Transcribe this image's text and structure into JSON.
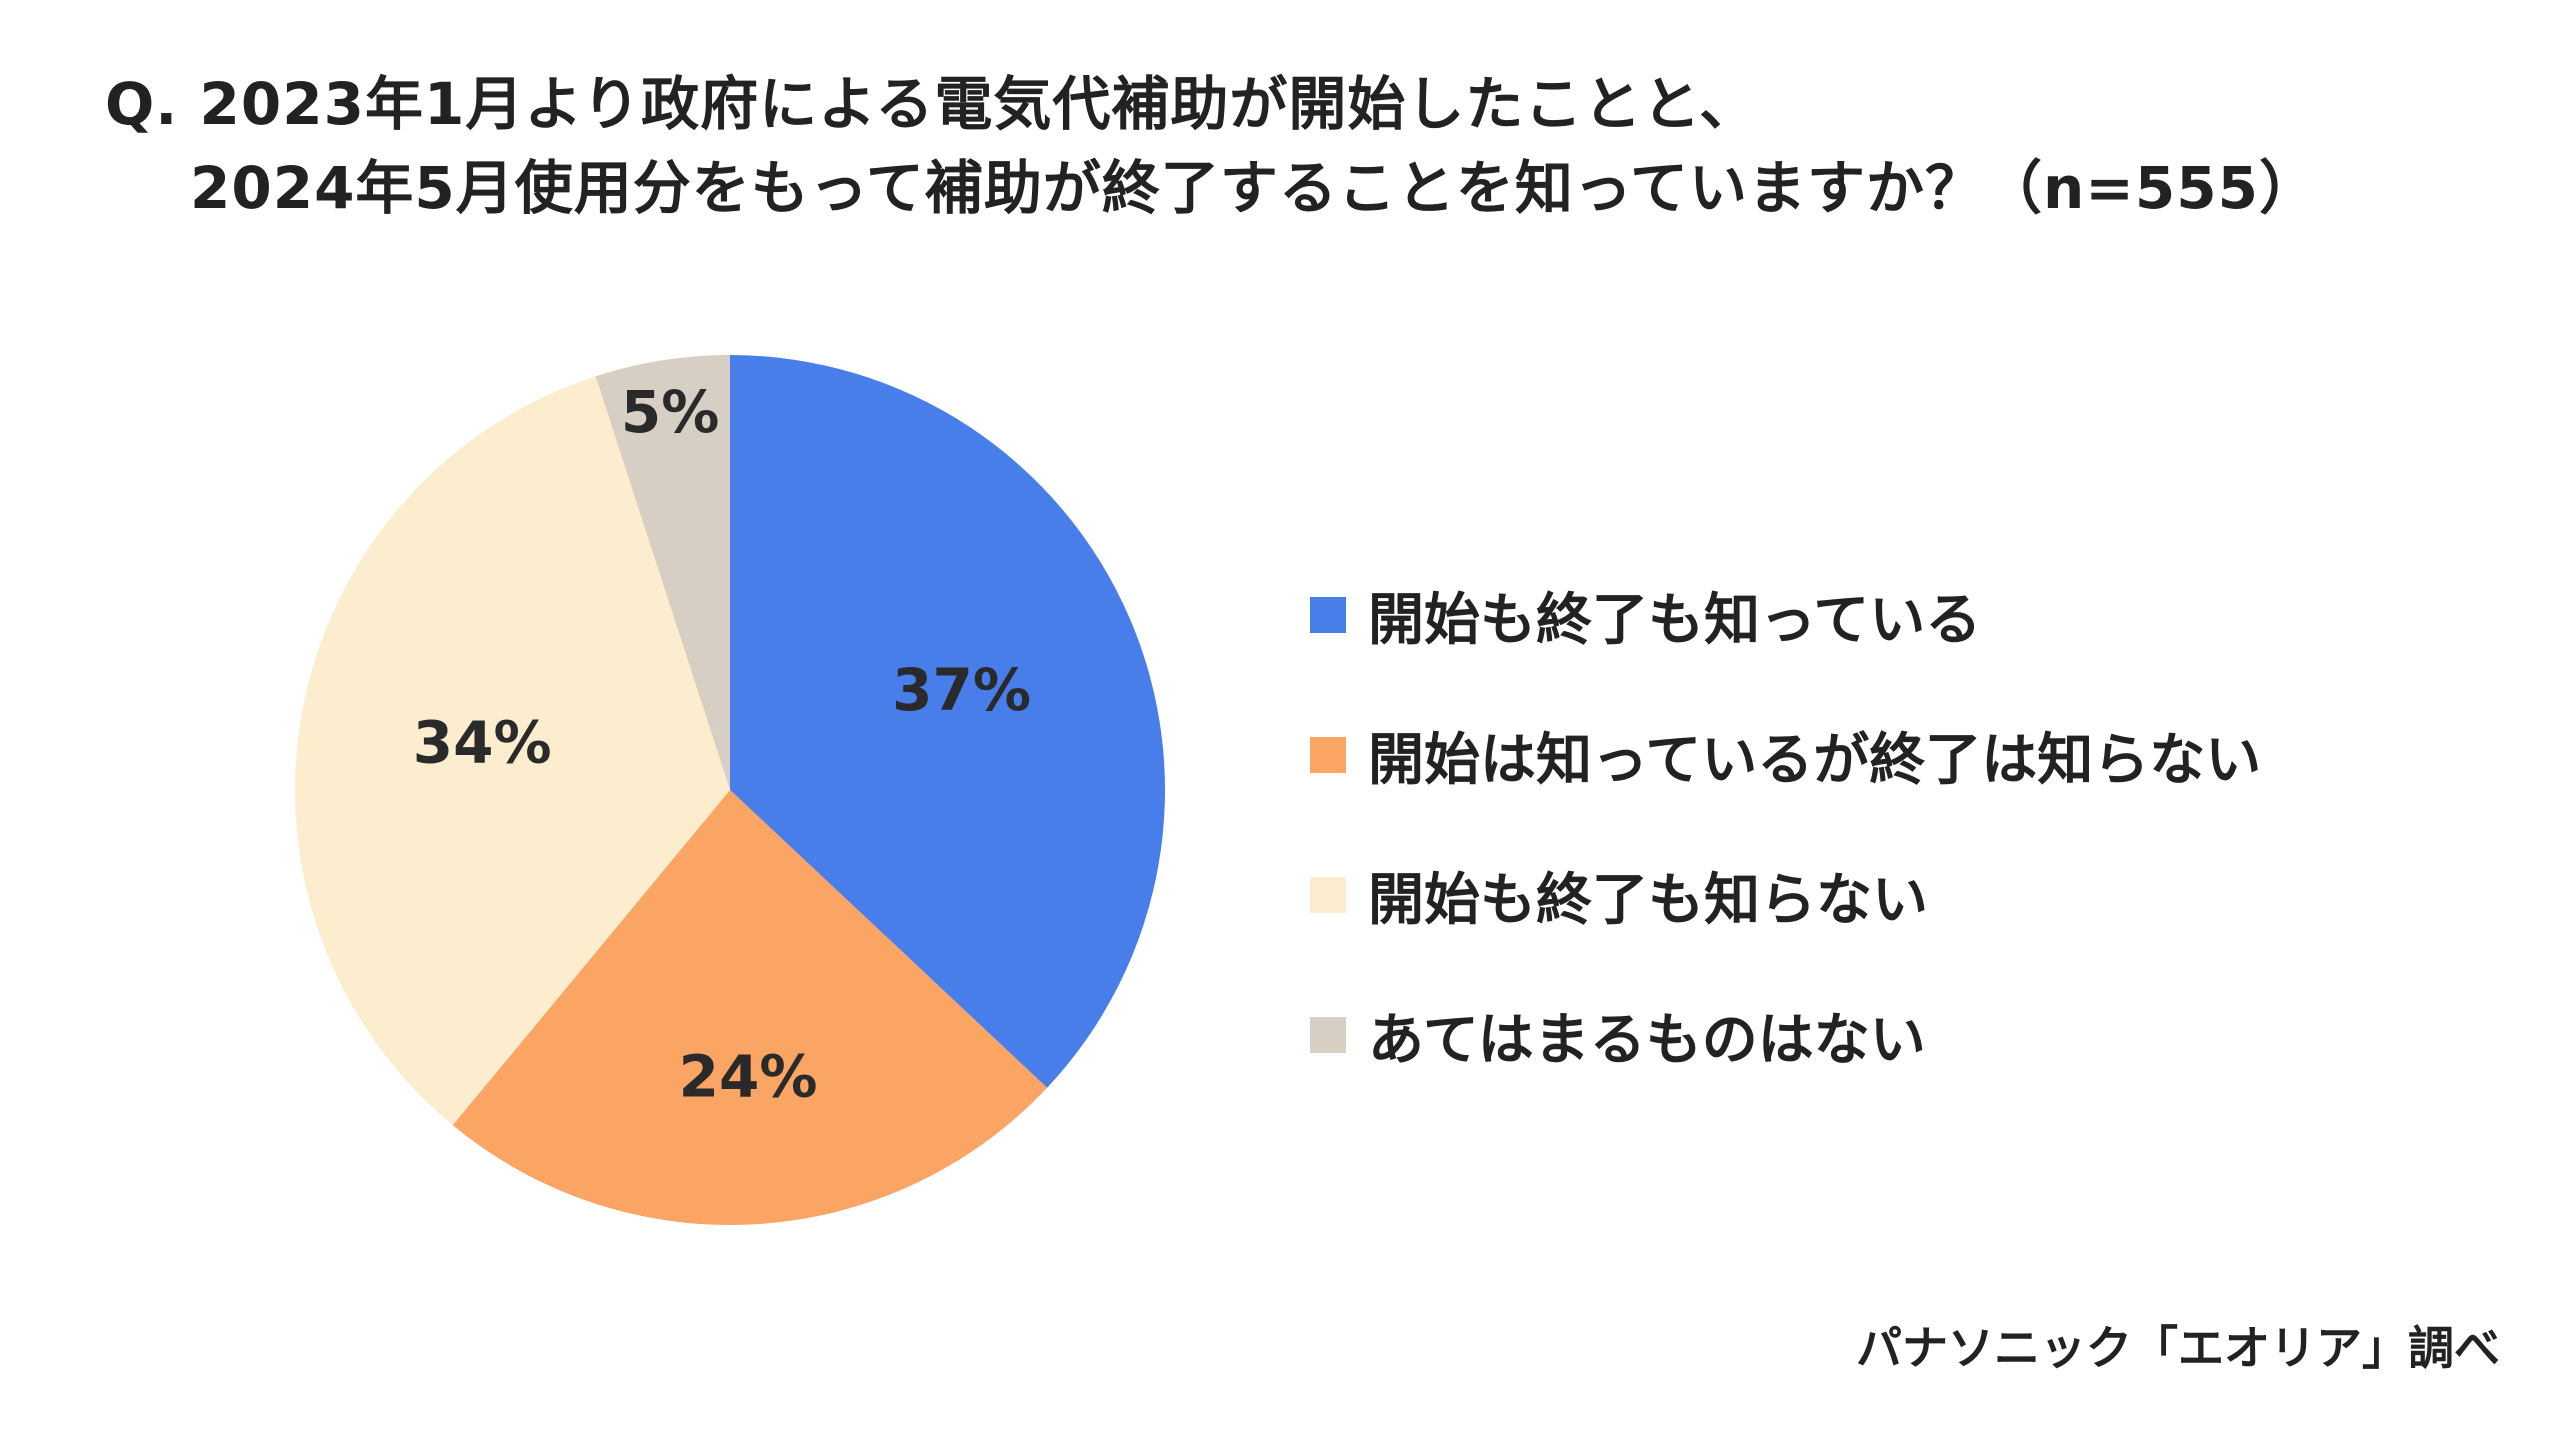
{
  "header": {
    "title_line1": "Q. 2023年1月より政府による電気代補助が開始したことと、",
    "title_line2": "2024年5月使用分をもって補助が終了することを知っていますか？（n=555）"
  },
  "chart_data": {
    "type": "pie",
    "title": "Q. 2023年1月より政府による電気代補助が開始したことと、2024年5月使用分をもって補助が終了することを知っていますか？（n=555）",
    "sample_size": "n=555",
    "start_angle_deg": 0,
    "direction": "clockwise",
    "legend_position": "right",
    "slices": [
      {
        "label": "開始も終了も知っている",
        "value": 37,
        "display": "37%",
        "color": "#477ee9"
      },
      {
        "label": "開始は知っているが終了は知らない",
        "value": 24,
        "display": "24%",
        "color": "#fba565"
      },
      {
        "label": "開始も終了も知らない",
        "value": 34,
        "display": "34%",
        "color": "#fdedcf"
      },
      {
        "label": "あてはまるものはない",
        "value": 5,
        "display": "5%",
        "color": "#d8cfc4"
      }
    ]
  },
  "footer": {
    "source": "パナソニック「エオリア」調べ"
  }
}
